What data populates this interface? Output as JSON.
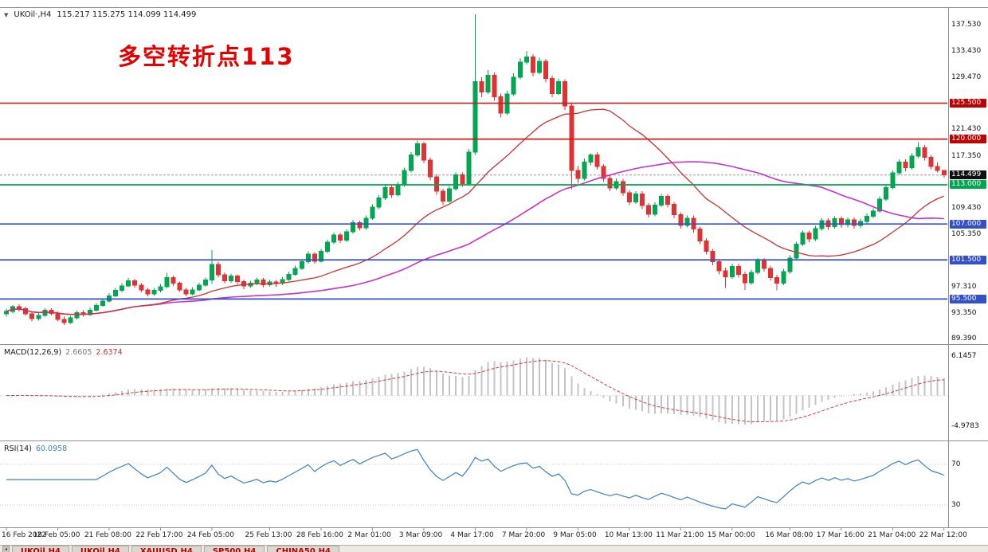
{
  "icons": {
    "chart_dropdown": "▼",
    "tab_scroll": "◂"
  },
  "window": {
    "header": {
      "symbol": "UKOil·,H4",
      "values": "115.217 115.275 114.099 114.499"
    },
    "annotation": "多空转折点113"
  },
  "colors": {
    "up": "#00A650",
    "down": "#E03232",
    "ma_fast": "#D03030",
    "ma_slow": "#C832C8",
    "line_red": "#C81E1E",
    "line_green": "#00A650",
    "line_blue": "#3450C8",
    "bid_line": "#999999",
    "badge_red": "#C00000",
    "badge_green": "#00A650",
    "badge_blue": "#3450C8",
    "badge_black": "#101010",
    "macd_bar": "#C4C4C4",
    "macd_signal": "#D04040",
    "rsi_line": "#3C80C0",
    "frame": "#909090"
  },
  "chart_data": {
    "type": "candlestick",
    "symbol": "UKOil",
    "timeframe": "H4",
    "last_ohlc": {
      "open": 115.217,
      "high": 115.275,
      "low": 114.099,
      "close": 114.499
    },
    "price_range_visible": [
      89.39,
      140.0
    ],
    "grid": false,
    "bid_price": 114.499,
    "hlines": [
      {
        "price": 125.5,
        "color": "red"
      },
      {
        "price": 120.0,
        "color": "red"
      },
      {
        "price": 113.0,
        "color": "green"
      },
      {
        "price": 107.0,
        "color": "blue"
      },
      {
        "price": 101.5,
        "color": "blue"
      },
      {
        "price": 95.5,
        "color": "blue"
      }
    ],
    "price_axis_labels": [
      {
        "v": "137.530"
      },
      {
        "v": "133.430"
      },
      {
        "v": "129.470"
      },
      {
        "v": "125.500",
        "badge": "red"
      },
      {
        "v": "121.430"
      },
      {
        "v": "120.000",
        "badge": "red"
      },
      {
        "v": "117.350"
      },
      {
        "v": "114.499",
        "badge": "black"
      },
      {
        "v": "113.000",
        "badge": "green"
      },
      {
        "v": "109.430"
      },
      {
        "v": "107.000",
        "badge": "blue"
      },
      {
        "v": "105.350"
      },
      {
        "v": "101.500",
        "badge": "blue"
      },
      {
        "v": "97.310"
      },
      {
        "v": "95.500",
        "badge": "blue"
      },
      {
        "v": "93.350"
      },
      {
        "v": "89.390"
      }
    ],
    "x_labels": [
      "16 Feb 2022",
      "18 Feb 05:00",
      "21 Feb 08:00",
      "22 Feb 17:00",
      "24 Feb 05:00",
      "25 Feb 13:00",
      "28 Feb 16:00",
      "2 Mar 01:00",
      "3 Mar 09:00",
      "4 Mar 17:00",
      "7 Mar 20:00",
      "9 Mar 05:00",
      "10 Mar 13:00",
      "11 Mar 21:00",
      "15 Mar 00:00",
      "16 Mar 08:00",
      "17 Mar 16:00",
      "21 Mar 04:00",
      "22 Mar 12:00"
    ],
    "x_label_indices": [
      0,
      8,
      16,
      24,
      32,
      41,
      49,
      57,
      65,
      73,
      81,
      89,
      97,
      105,
      113,
      122,
      130,
      138,
      146
    ],
    "candles": [
      [
        93.2,
        94.0,
        92.8,
        93.6
      ],
      [
        93.6,
        94.6,
        93.3,
        94.3
      ],
      [
        94.3,
        94.7,
        93.6,
        94.0
      ],
      [
        94.0,
        94.3,
        92.9,
        93.2
      ],
      [
        93.2,
        93.5,
        92.1,
        92.5
      ],
      [
        92.5,
        93.4,
        92.2,
        93.0
      ],
      [
        93.0,
        94.1,
        92.8,
        93.8
      ],
      [
        93.8,
        94.1,
        93.0,
        93.3
      ],
      [
        93.3,
        93.6,
        92.1,
        92.4
      ],
      [
        92.4,
        92.8,
        91.5,
        91.9
      ],
      [
        91.9,
        92.9,
        91.7,
        92.6
      ],
      [
        92.6,
        93.7,
        92.4,
        93.4
      ],
      [
        93.4,
        93.8,
        92.8,
        93.1
      ],
      [
        93.1,
        94.2,
        92.9,
        93.8
      ],
      [
        93.8,
        94.9,
        93.6,
        94.5
      ],
      [
        94.5,
        95.6,
        94.3,
        95.2
      ],
      [
        95.2,
        96.4,
        95.0,
        96.0
      ],
      [
        96.0,
        97.2,
        95.8,
        96.8
      ],
      [
        96.8,
        97.9,
        96.5,
        97.5
      ],
      [
        97.5,
        98.7,
        97.3,
        98.3
      ],
      [
        98.3,
        98.6,
        97.2,
        97.6
      ],
      [
        97.6,
        97.9,
        96.5,
        96.9
      ],
      [
        96.9,
        97.2,
        95.9,
        96.3
      ],
      [
        96.3,
        97.2,
        96.0,
        96.8
      ],
      [
        96.8,
        97.8,
        96.5,
        97.4
      ],
      [
        97.4,
        99.5,
        97.2,
        98.8
      ],
      [
        98.8,
        99.1,
        97.5,
        97.9
      ],
      [
        97.9,
        98.2,
        96.6,
        96.9
      ],
      [
        96.9,
        97.2,
        95.9,
        96.3
      ],
      [
        96.3,
        97.3,
        96.1,
        96.9
      ],
      [
        96.9,
        98.0,
        96.7,
        97.6
      ],
      [
        97.6,
        98.8,
        97.4,
        98.4
      ],
      [
        98.4,
        103.0,
        97.8,
        100.8
      ],
      [
        100.8,
        101.2,
        98.8,
        99.2
      ],
      [
        99.2,
        99.6,
        97.9,
        98.3
      ],
      [
        98.3,
        99.4,
        98.0,
        99.0
      ],
      [
        99.0,
        99.3,
        97.8,
        98.2
      ],
      [
        98.2,
        98.5,
        97.0,
        97.5
      ],
      [
        97.5,
        98.3,
        97.2,
        97.9
      ],
      [
        97.9,
        98.8,
        97.6,
        98.4
      ],
      [
        98.4,
        98.7,
        97.3,
        97.7
      ],
      [
        97.7,
        98.5,
        97.4,
        98.1
      ],
      [
        98.1,
        98.4,
        97.4,
        97.9
      ],
      [
        97.9,
        98.9,
        97.6,
        98.5
      ],
      [
        98.5,
        99.7,
        98.3,
        99.3
      ],
      [
        99.3,
        100.6,
        99.1,
        100.2
      ],
      [
        100.2,
        101.6,
        100.0,
        101.2
      ],
      [
        101.2,
        102.8,
        100.9,
        102.4
      ],
      [
        102.4,
        102.7,
        100.9,
        101.3
      ],
      [
        101.3,
        103.2,
        101.1,
        102.8
      ],
      [
        102.8,
        104.6,
        102.5,
        104.2
      ],
      [
        104.2,
        105.7,
        103.9,
        105.3
      ],
      [
        105.3,
        105.6,
        104.1,
        104.5
      ],
      [
        104.5,
        106.2,
        104.2,
        105.8
      ],
      [
        105.8,
        107.6,
        105.5,
        107.2
      ],
      [
        107.2,
        107.5,
        106.0,
        106.4
      ],
      [
        106.4,
        108.3,
        106.1,
        107.9
      ],
      [
        107.9,
        110.0,
        107.6,
        109.6
      ],
      [
        109.6,
        111.4,
        109.3,
        111.0
      ],
      [
        111.0,
        113.0,
        110.7,
        112.6
      ],
      [
        112.6,
        112.9,
        111.0,
        111.5
      ],
      [
        111.5,
        113.4,
        111.2,
        113.0
      ],
      [
        113.0,
        115.6,
        112.7,
        115.2
      ],
      [
        115.2,
        118.0,
        114.9,
        117.6
      ],
      [
        117.6,
        119.8,
        117.3,
        119.3
      ],
      [
        119.3,
        119.6,
        116.3,
        116.8
      ],
      [
        116.8,
        117.2,
        113.7,
        114.2
      ],
      [
        114.2,
        114.6,
        111.5,
        112.0
      ],
      [
        112.0,
        112.4,
        109.9,
        110.5
      ],
      [
        110.5,
        112.8,
        110.2,
        112.4
      ],
      [
        112.4,
        114.9,
        112.1,
        114.5
      ],
      [
        114.5,
        114.9,
        112.7,
        113.2
      ],
      [
        113.2,
        118.5,
        112.9,
        118.0
      ],
      [
        118.0,
        139.1,
        117.6,
        128.8
      ],
      [
        128.8,
        129.5,
        126.4,
        127.2
      ],
      [
        127.2,
        130.6,
        126.9,
        129.8
      ],
      [
        129.8,
        130.2,
        125.9,
        126.5
      ],
      [
        126.5,
        127.0,
        123.3,
        124.0
      ],
      [
        124.0,
        127.4,
        123.7,
        126.9
      ],
      [
        126.9,
        130.1,
        126.6,
        129.5
      ],
      [
        129.5,
        132.4,
        129.2,
        131.8
      ],
      [
        131.8,
        133.5,
        131.4,
        132.6
      ],
      [
        132.6,
        133.0,
        129.6,
        130.2
      ],
      [
        130.2,
        132.5,
        129.9,
        131.9
      ],
      [
        131.9,
        132.3,
        128.7,
        129.3
      ],
      [
        129.3,
        129.7,
        126.4,
        127.0
      ],
      [
        127.0,
        129.3,
        126.7,
        128.8
      ],
      [
        128.8,
        129.2,
        124.5,
        125.1
      ],
      [
        125.1,
        125.5,
        112.3,
        115.2
      ],
      [
        115.2,
        115.9,
        113.2,
        114.0
      ],
      [
        114.0,
        117.0,
        113.7,
        116.5
      ],
      [
        116.5,
        117.8,
        116.0,
        117.6
      ],
      [
        117.6,
        118.0,
        115.3,
        115.8
      ],
      [
        115.8,
        116.2,
        113.5,
        114.0
      ],
      [
        114.0,
        114.4,
        112.0,
        112.5
      ],
      [
        112.5,
        114.0,
        112.2,
        113.5
      ],
      [
        113.5,
        113.9,
        111.3,
        111.8
      ],
      [
        111.8,
        112.2,
        109.9,
        110.4
      ],
      [
        110.4,
        112.0,
        110.1,
        111.6
      ],
      [
        111.6,
        112.0,
        109.3,
        109.8
      ],
      [
        109.8,
        110.2,
        108.0,
        108.5
      ],
      [
        108.5,
        110.3,
        108.2,
        109.9
      ],
      [
        109.9,
        111.6,
        109.6,
        111.2
      ],
      [
        111.2,
        111.6,
        109.5,
        110.0
      ],
      [
        110.0,
        110.4,
        107.9,
        108.4
      ],
      [
        108.4,
        108.8,
        106.3,
        106.8
      ],
      [
        106.8,
        108.3,
        106.5,
        107.9
      ],
      [
        107.9,
        108.3,
        105.7,
        106.2
      ],
      [
        106.2,
        106.6,
        103.9,
        104.4
      ],
      [
        104.4,
        104.8,
        102.3,
        102.8
      ],
      [
        102.8,
        103.2,
        100.7,
        101.2
      ],
      [
        101.2,
        101.6,
        99.3,
        99.8
      ],
      [
        99.8,
        100.3,
        97.2,
        98.9
      ],
      [
        98.9,
        100.9,
        98.6,
        100.5
      ],
      [
        100.5,
        100.9,
        98.8,
        99.3
      ],
      [
        99.3,
        99.7,
        96.9,
        98.0
      ],
      [
        98.0,
        100.0,
        97.7,
        99.6
      ],
      [
        99.6,
        101.8,
        99.3,
        101.4
      ],
      [
        101.4,
        101.8,
        99.7,
        100.2
      ],
      [
        100.2,
        100.6,
        98.3,
        98.8
      ],
      [
        98.8,
        99.2,
        96.8,
        97.9
      ],
      [
        97.9,
        100.1,
        97.6,
        99.7
      ],
      [
        99.7,
        102.2,
        99.4,
        101.8
      ],
      [
        101.8,
        104.3,
        101.5,
        103.9
      ],
      [
        103.9,
        106.0,
        103.6,
        105.6
      ],
      [
        105.6,
        106.0,
        104.2,
        104.7
      ],
      [
        104.7,
        106.7,
        104.4,
        106.3
      ],
      [
        106.3,
        107.9,
        106.0,
        107.5
      ],
      [
        107.5,
        107.9,
        106.1,
        106.6
      ],
      [
        106.6,
        108.2,
        106.3,
        107.8
      ],
      [
        107.8,
        108.2,
        106.4,
        106.9
      ],
      [
        106.9,
        108.0,
        106.5,
        107.6
      ],
      [
        107.6,
        108.0,
        106.3,
        106.8
      ],
      [
        106.8,
        107.8,
        106.4,
        107.4
      ],
      [
        107.4,
        108.6,
        107.1,
        108.2
      ],
      [
        108.2,
        109.4,
        107.9,
        109.0
      ],
      [
        109.0,
        111.2,
        108.7,
        110.8
      ],
      [
        110.8,
        113.0,
        110.5,
        112.6
      ],
      [
        112.6,
        115.2,
        112.3,
        114.8
      ],
      [
        114.8,
        116.9,
        114.5,
        116.5
      ],
      [
        116.5,
        116.9,
        115.1,
        115.6
      ],
      [
        115.6,
        117.8,
        115.3,
        117.4
      ],
      [
        117.4,
        119.5,
        117.1,
        118.7
      ],
      [
        118.7,
        119.1,
        116.7,
        117.2
      ],
      [
        117.2,
        117.6,
        115.4,
        115.8
      ],
      [
        115.8,
        116.4,
        114.9,
        115.217
      ],
      [
        115.217,
        115.275,
        114.099,
        114.499
      ]
    ],
    "indicators": {
      "ma_fast_period": 22,
      "ma_slow_period": 55,
      "macd": {
        "label": "MACD(12,26,9)",
        "value_main": "2.6605",
        "value_signal": "2.6374",
        "axis_labels": [
          {
            "v": "6.1457"
          },
          {
            "v": "-4.9783"
          }
        ]
      },
      "rsi": {
        "label": "RSI(14)",
        "value": "60.0958",
        "levels": [
          70,
          30
        ],
        "axis_labels": [
          {
            "v": "70"
          },
          {
            "v": "30"
          }
        ]
      }
    }
  },
  "tabbar": {
    "tabs": [
      {
        "label": "UKOil,H4"
      },
      {
        "label": "UKOil,H4"
      },
      {
        "label": "XAUUSD,H4"
      },
      {
        "label": "SP500,H4"
      },
      {
        "label": "CHINA50,H4"
      }
    ]
  }
}
